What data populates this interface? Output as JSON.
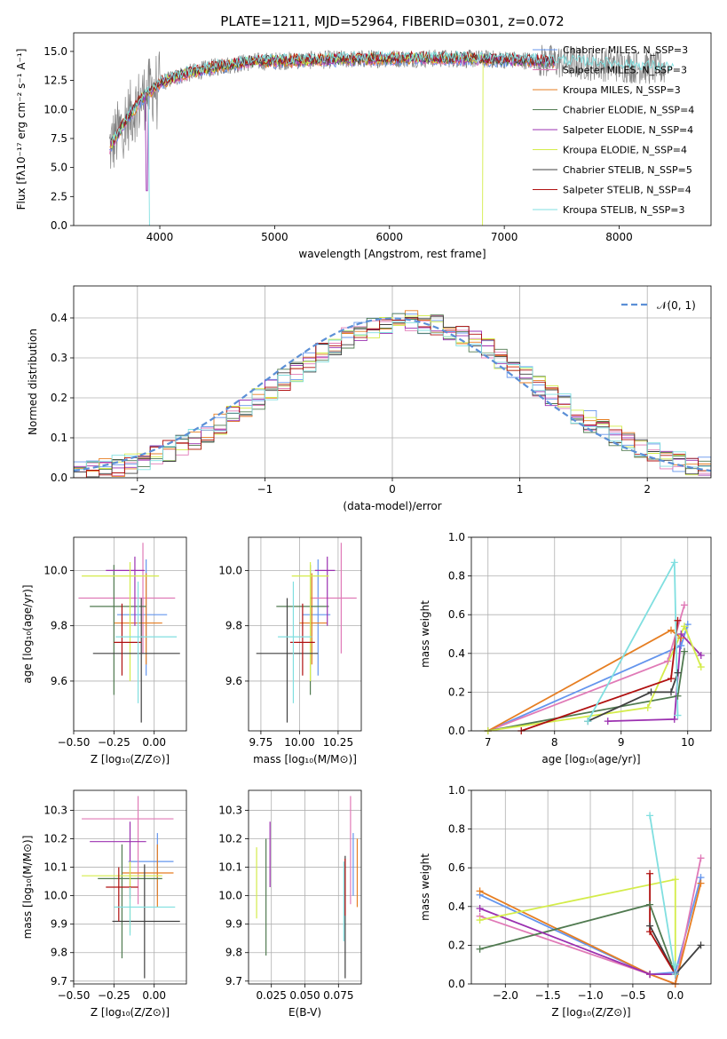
{
  "chart_data": [
    {
      "id": "spectrum",
      "type": "line",
      "title": "PLATE=1211, MJD=52964, FIBERID=0301, z=0.072",
      "xlabel": "wavelength [Angstrom, rest frame]",
      "ylabel": "Flux [fλ10⁻¹⁷ erg cm⁻² s⁻¹ A⁻¹]",
      "xlim": [
        3250,
        8800
      ],
      "ylim": [
        0,
        16.6
      ],
      "xticks": [
        4000,
        5000,
        6000,
        7000,
        8000
      ],
      "yticks": [
        0.0,
        2.5,
        5.0,
        7.5,
        10.0,
        12.5,
        15.0
      ],
      "grid": false,
      "legend_position": "top-right",
      "spectrum_shape": {
        "x": [
          3550,
          3700,
          3850,
          4000,
          4200,
          4500,
          4800,
          5100,
          5500,
          6000,
          6500,
          7000,
          7500,
          8000,
          8400
        ],
        "y": [
          6.5,
          9.0,
          11.0,
          12.3,
          13.0,
          13.7,
          14.1,
          14.2,
          14.3,
          14.4,
          14.4,
          14.3,
          14.1,
          13.8,
          13.5
        ]
      },
      "series": [
        {
          "name": "Chabrier MILES, N_SSP=3",
          "color": "#6495ed"
        },
        {
          "name": "Salpeter MILES, N_SSP=3",
          "color": "#e07ab7"
        },
        {
          "name": "Kroupa MILES, N_SSP=3",
          "color": "#e67e22"
        },
        {
          "name": "Chabrier ELODIE, N_SSP=4",
          "color": "#507a50"
        },
        {
          "name": "Salpeter ELODIE, N_SSP=4",
          "color": "#9b30b0"
        },
        {
          "name": "Kroupa ELODIE, N_SSP=4",
          "color": "#d4ec4a"
        },
        {
          "name": "Chabrier STELIB, N_SSP=5",
          "color": "#404040"
        },
        {
          "name": "Salpeter STELIB, N_SSP=4",
          "color": "#b01010"
        },
        {
          "name": "Kroupa STELIB, N_SSP=3",
          "color": "#80dfe0"
        }
      ],
      "data_color": "#808080"
    },
    {
      "id": "residuals",
      "type": "line",
      "xlabel": "(data-model)/error",
      "ylabel": "Normed distribution",
      "xlim": [
        -2.5,
        2.5
      ],
      "ylim": [
        0,
        0.48
      ],
      "xticks": [
        -2,
        -1,
        0,
        1,
        2
      ],
      "yticks": [
        0.0,
        0.1,
        0.2,
        0.3,
        0.4
      ],
      "grid": true,
      "legend_position": "top-right",
      "legend_label": "𝒩(0, 1)",
      "normal_color": "#5b8fd6",
      "histogram_bin_width": 0.1
    },
    {
      "id": "age_vs_Z",
      "type": "scatter",
      "xlabel": "Z [log₁₀(Z/Z⊙)]",
      "ylabel": "age  [log₁₀(age/yr)]",
      "xlim": [
        -0.5,
        0.2
      ],
      "ylim": [
        9.42,
        10.12
      ],
      "xticks": [
        -0.5,
        -0.25,
        0.0
      ],
      "yticks": [
        9.6,
        9.8,
        10.0
      ],
      "grid": true,
      "errorbars": [
        {
          "color": "#6495ed",
          "x": -0.05,
          "xerr": [
            0.18,
            0.13
          ],
          "y": 9.84,
          "yerr": [
            0.22,
            0.2
          ]
        },
        {
          "color": "#e07ab7",
          "x": -0.07,
          "xerr": [
            0.4,
            0.2
          ],
          "y": 9.9,
          "yerr": [
            0.2,
            0.2
          ]
        },
        {
          "color": "#e67e22",
          "x": -0.05,
          "xerr": [
            0.2,
            0.1
          ],
          "y": 9.81,
          "yerr": [
            0.15,
            0.18
          ]
        },
        {
          "color": "#507a50",
          "x": -0.25,
          "xerr": [
            0.15,
            0.2
          ],
          "y": 9.87,
          "yerr": [
            0.32,
            0.15
          ]
        },
        {
          "color": "#9b30b0",
          "x": -0.12,
          "xerr": [
            0.18,
            0.06
          ],
          "y": 10.0,
          "yerr": [
            0.2,
            0.05
          ]
        },
        {
          "color": "#d4ec4a",
          "x": -0.15,
          "xerr": [
            0.3,
            0.18
          ],
          "y": 9.98,
          "yerr": [
            0.38,
            0.05
          ]
        },
        {
          "color": "#404040",
          "x": -0.08,
          "xerr": [
            0.3,
            0.24
          ],
          "y": 9.7,
          "yerr": [
            0.25,
            0.2
          ]
        },
        {
          "color": "#b01010",
          "x": -0.2,
          "xerr": [
            0.05,
            0.12
          ],
          "y": 9.74,
          "yerr": [
            0.12,
            0.14
          ]
        },
        {
          "color": "#80dfe0",
          "x": -0.1,
          "xerr": [
            0.14,
            0.24
          ],
          "y": 9.76,
          "yerr": [
            0.24,
            0.2
          ]
        }
      ]
    },
    {
      "id": "age_vs_mass",
      "type": "scatter",
      "xlabel": "mass [log₁₀(M/M⊙)]",
      "xlim": [
        9.67,
        10.4
      ],
      "ylim": [
        9.42,
        10.12
      ],
      "xticks": [
        9.75,
        10.0,
        10.25
      ],
      "yticks": [
        9.6,
        9.8,
        10.0
      ],
      "grid": true,
      "errorbars": [
        {
          "color": "#6495ed",
          "x": 10.12,
          "xerr": [
            0.1,
            0.08
          ],
          "y": 9.84,
          "yerr": [
            0.22,
            0.2
          ]
        },
        {
          "color": "#e07ab7",
          "x": 10.27,
          "xerr": [
            0.2,
            0.1
          ],
          "y": 9.9,
          "yerr": [
            0.2,
            0.2
          ]
        },
        {
          "color": "#e67e22",
          "x": 10.08,
          "xerr": [
            0.08,
            0.1
          ],
          "y": 9.81,
          "yerr": [
            0.15,
            0.18
          ]
        },
        {
          "color": "#507a50",
          "x": 10.07,
          "xerr": [
            0.22,
            0.12
          ],
          "y": 9.87,
          "yerr": [
            0.32,
            0.15
          ]
        },
        {
          "color": "#9b30b0",
          "x": 10.18,
          "xerr": [
            0.08,
            0.05
          ],
          "y": 10.0,
          "yerr": [
            0.2,
            0.05
          ]
        },
        {
          "color": "#d4ec4a",
          "x": 10.07,
          "xerr": [
            0.12,
            0.12
          ],
          "y": 9.98,
          "yerr": [
            0.38,
            0.05
          ]
        },
        {
          "color": "#404040",
          "x": 9.92,
          "xerr": [
            0.2,
            0.2
          ],
          "y": 9.7,
          "yerr": [
            0.25,
            0.2
          ]
        },
        {
          "color": "#b01010",
          "x": 10.02,
          "xerr": [
            0.08,
            0.08
          ],
          "y": 9.74,
          "yerr": [
            0.12,
            0.14
          ]
        },
        {
          "color": "#80dfe0",
          "x": 9.96,
          "xerr": [
            0.1,
            0.12
          ],
          "y": 9.76,
          "yerr": [
            0.24,
            0.2
          ]
        }
      ]
    },
    {
      "id": "weight_vs_age",
      "type": "line",
      "xlabel": "age  [log₁₀(age/yr)]",
      "ylabel": "mass weight",
      "xlim": [
        6.75,
        10.35
      ],
      "ylim": [
        0.0,
        1.0
      ],
      "xticks": [
        7,
        8,
        9,
        10
      ],
      "yticks": [
        0.0,
        0.2,
        0.4,
        0.6,
        0.8,
        1.0
      ],
      "grid": true,
      "series": [
        {
          "color": "#6495ed",
          "x": [
            7.0,
            9.9,
            10.0
          ],
          "y": [
            0.0,
            0.44,
            0.55
          ]
        },
        {
          "color": "#e07ab7",
          "x": [
            7.0,
            9.7,
            9.95
          ],
          "y": [
            0.0,
            0.36,
            0.65
          ]
        },
        {
          "color": "#e67e22",
          "x": [
            7.0,
            9.75,
            9.9
          ],
          "y": [
            0.0,
            0.52,
            0.48
          ]
        },
        {
          "color": "#507a50",
          "x": [
            7.0,
            9.85,
            9.95
          ],
          "y": [
            0.0,
            0.18,
            0.41
          ]
        },
        {
          "color": "#9b30b0",
          "x": [
            8.8,
            9.8,
            9.9,
            10.2
          ],
          "y": [
            0.05,
            0.06,
            0.5,
            0.39
          ]
        },
        {
          "color": "#d4ec4a",
          "x": [
            7.0,
            9.4,
            9.95,
            10.2
          ],
          "y": [
            0.0,
            0.12,
            0.54,
            0.33
          ]
        },
        {
          "color": "#404040",
          "x": [
            8.5,
            9.45,
            9.75,
            9.85
          ],
          "y": [
            0.05,
            0.2,
            0.2,
            0.3
          ]
        },
        {
          "color": "#b01010",
          "x": [
            7.5,
            9.75,
            9.85
          ],
          "y": [
            0.0,
            0.27,
            0.57
          ]
        },
        {
          "color": "#80dfe0",
          "x": [
            8.5,
            9.8,
            9.85
          ],
          "y": [
            0.05,
            0.87,
            0.08
          ]
        }
      ]
    },
    {
      "id": "mass_vs_Z",
      "type": "scatter",
      "xlabel": "Z [log₁₀(Z/Z⊙)]",
      "ylabel": "mass [log₁₀(M/M⊙)]",
      "xlim": [
        -0.5,
        0.2
      ],
      "ylim": [
        9.69,
        10.37
      ],
      "xticks": [
        -0.5,
        -0.25,
        0.0
      ],
      "yticks": [
        9.7,
        9.8,
        9.9,
        10.0,
        10.1,
        10.2,
        10.3
      ],
      "grid": true,
      "errorbars": [
        {
          "color": "#6495ed",
          "x": 0.02,
          "xerr": [
            0.18,
            0.1
          ],
          "y": 10.12,
          "yerr": [
            0.12,
            0.1
          ]
        },
        {
          "color": "#e07ab7",
          "x": -0.1,
          "xerr": [
            0.35,
            0.22
          ],
          "y": 10.27,
          "yerr": [
            0.3,
            0.08
          ]
        },
        {
          "color": "#e67e22",
          "x": 0.02,
          "xerr": [
            0.22,
            0.1
          ],
          "y": 10.08,
          "yerr": [
            0.12,
            0.1
          ]
        },
        {
          "color": "#507a50",
          "x": -0.2,
          "xerr": [
            0.15,
            0.25
          ],
          "y": 10.06,
          "yerr": [
            0.28,
            0.12
          ]
        },
        {
          "color": "#9b30b0",
          "x": -0.15,
          "xerr": [
            0.25,
            0.1
          ],
          "y": 10.19,
          "yerr": [
            0.2,
            0.07
          ]
        },
        {
          "color": "#d4ec4a",
          "x": -0.15,
          "xerr": [
            0.3,
            0.2
          ],
          "y": 10.07,
          "yerr": [
            0.2,
            0.05
          ]
        },
        {
          "color": "#404040",
          "x": -0.06,
          "xerr": [
            0.2,
            0.22
          ],
          "y": 9.91,
          "yerr": [
            0.2,
            0.2
          ]
        },
        {
          "color": "#b01010",
          "x": -0.22,
          "xerr": [
            0.08,
            0.12
          ],
          "y": 10.03,
          "yerr": [
            0.12,
            0.07
          ]
        },
        {
          "color": "#80dfe0",
          "x": -0.15,
          "xerr": [
            0.1,
            0.28
          ],
          "y": 9.96,
          "yerr": [
            0.1,
            0.07
          ]
        }
      ]
    },
    {
      "id": "mass_vs_ebv",
      "type": "scatter",
      "xlabel": "E(B-V)",
      "xlim": [
        0.008,
        0.092
      ],
      "ylim": [
        9.69,
        10.37
      ],
      "xticks": [
        0.025,
        0.05,
        0.075
      ],
      "xtick_labels": [
        "0.025",
        "0.050",
        "0.075"
      ],
      "yticks": [
        9.7,
        9.8,
        9.9,
        10.0,
        10.1,
        10.2,
        10.3
      ],
      "grid": true,
      "errorbars": [
        {
          "color": "#6495ed",
          "x": 0.086,
          "y": 10.12,
          "yerr": [
            0.12,
            0.1
          ]
        },
        {
          "color": "#e07ab7",
          "x": 0.084,
          "y": 10.27,
          "yerr": [
            0.3,
            0.08
          ]
        },
        {
          "color": "#e67e22",
          "x": 0.089,
          "y": 10.08,
          "yerr": [
            0.12,
            0.12
          ]
        },
        {
          "color": "#507a50",
          "x": 0.021,
          "y": 10.06,
          "yerr": [
            0.27,
            0.14
          ]
        },
        {
          "color": "#9b30b0",
          "x": 0.024,
          "y": 10.19,
          "yerr": [
            0.16,
            0.07
          ]
        },
        {
          "color": "#d4ec4a",
          "x": 0.014,
          "y": 10.07,
          "yerr": [
            0.15,
            0.1
          ]
        },
        {
          "color": "#404040",
          "x": 0.08,
          "y": 9.91,
          "yerr": [
            0.2,
            0.23
          ]
        },
        {
          "color": "#b01010",
          "x": 0.08,
          "y": 10.03,
          "yerr": [
            0.1,
            0.1
          ]
        },
        {
          "color": "#80dfe0",
          "x": 0.079,
          "y": 9.96,
          "yerr": [
            0.12,
            0.16
          ]
        }
      ]
    },
    {
      "id": "weight_vs_Z",
      "type": "line",
      "xlabel": "Z [log₁₀(Z/Z⊙)]",
      "ylabel": "mass weight",
      "xlim": [
        -2.4,
        0.42
      ],
      "ylim": [
        0.0,
        1.0
      ],
      "xticks": [
        -2.0,
        -1.5,
        -1.0,
        -0.5,
        0.0
      ],
      "yticks": [
        0.0,
        0.2,
        0.4,
        0.6,
        0.8,
        1.0
      ],
      "grid": true,
      "series": [
        {
          "color": "#6495ed",
          "x": [
            -2.3,
            -0.3,
            0.0,
            0.3
          ],
          "y": [
            0.46,
            0.05,
            0.06,
            0.55
          ]
        },
        {
          "color": "#e07ab7",
          "x": [
            -2.3,
            -0.3,
            0.0,
            0.3
          ],
          "y": [
            0.35,
            0.05,
            0.0,
            0.65
          ]
        },
        {
          "color": "#e67e22",
          "x": [
            -2.3,
            -0.3,
            0.0,
            0.3
          ],
          "y": [
            0.48,
            0.05,
            0.0,
            0.52
          ]
        },
        {
          "color": "#507a50",
          "x": [
            -2.3,
            -0.3,
            0.0
          ],
          "y": [
            0.18,
            0.41,
            0.05
          ]
        },
        {
          "color": "#9b30b0",
          "x": [
            -2.3,
            -0.3,
            0.0
          ],
          "y": [
            0.39,
            0.05,
            0.05
          ]
        },
        {
          "color": "#d4ec4a",
          "x": [
            -2.3,
            0.0,
            0.0
          ],
          "y": [
            0.33,
            0.54,
            0.1
          ]
        },
        {
          "color": "#404040",
          "x": [
            -0.3,
            0.0,
            0.3
          ],
          "y": [
            0.3,
            0.05,
            0.2
          ]
        },
        {
          "color": "#b01010",
          "x": [
            -0.3,
            -0.3,
            0.0
          ],
          "y": [
            0.57,
            0.27,
            0.05
          ]
        },
        {
          "color": "#80dfe0",
          "x": [
            -0.3,
            0.0,
            0.0
          ],
          "y": [
            0.87,
            0.05,
            0.1
          ]
        }
      ]
    }
  ]
}
